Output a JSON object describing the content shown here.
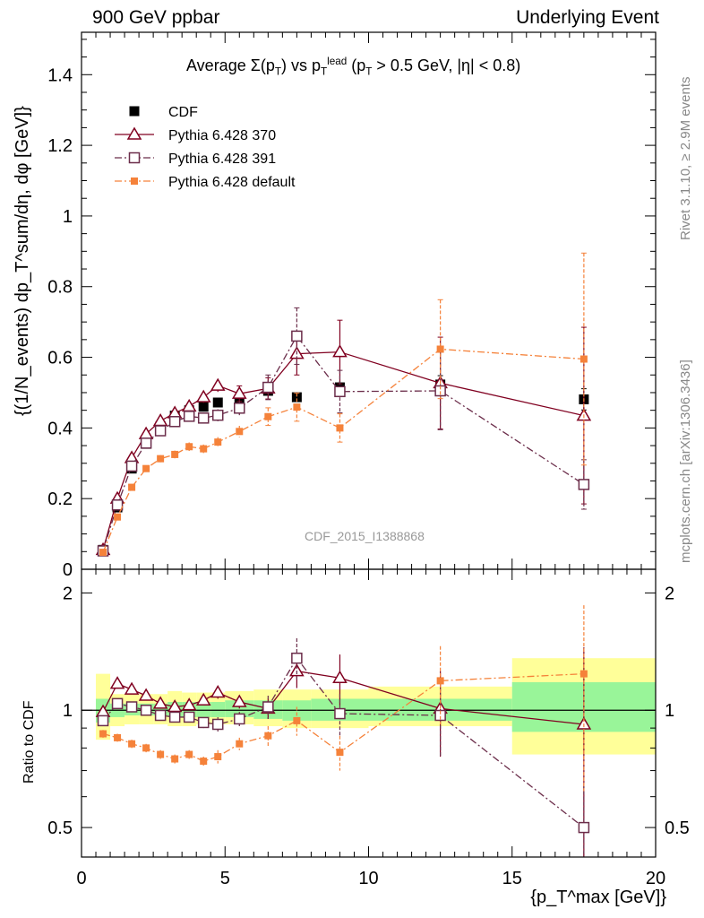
{
  "header": {
    "left": "900 GeV ppbar",
    "right": "Underlying Event",
    "subtitle_parts": [
      "Average ",
      "Σ(p",
      "T",
      ") vs p",
      "T",
      "lead",
      " (p",
      "T",
      " > 0.5 GeV, |η| < 0.8)"
    ],
    "side_top": "Rivet 3.1.10, ≥ 2.9M events",
    "side_bottom": "mcplots.cern.ch [arXiv:1306.3436]",
    "watermark": "CDF_2015_I1388868"
  },
  "axes": {
    "ylabel_top": "{(1/N_events) dp_T^sum/dη, dφ [GeV]}",
    "ylabel_bottom": "Ratio to CDF",
    "xlabel": "{p_T^max [GeV]}"
  },
  "chart_data": [
    {
      "type": "scatter",
      "panel": "main",
      "title": "Average Σ(pT) vs pT lead (pT > 0.5 GeV, |η| < 0.8)",
      "xlim": [
        0,
        20
      ],
      "ylim": [
        0,
        1.52
      ],
      "yticks": [
        0,
        0.2,
        0.4,
        0.6,
        0.8,
        1,
        1.2,
        1.4
      ],
      "ytick_labels": [
        "0",
        "0.2",
        "0.4",
        "0.6",
        "0.8",
        "1",
        "1.2",
        "1.4"
      ],
      "legend_position": "top-left",
      "series": [
        {
          "name": "CDF",
          "color": "#000000",
          "marker": "filled-square",
          "line": "none",
          "x": [
            0.75,
            1.25,
            1.75,
            2.25,
            2.75,
            3.25,
            3.75,
            4.25,
            4.75,
            5.5,
            6.5,
            7.5,
            9.0,
            12.5,
            17.5
          ],
          "y": [
            0.055,
            0.175,
            0.285,
            0.355,
            0.405,
            0.435,
            0.45,
            0.46,
            0.472,
            0.478,
            0.505,
            0.487,
            0.515,
            0.523,
            0.481
          ],
          "err": [
            0.003,
            0.005,
            0.006,
            0.007,
            0.008,
            0.008,
            0.009,
            0.009,
            0.01,
            0.01,
            0.012,
            0.014,
            0.018,
            0.025,
            0.03
          ]
        },
        {
          "name": "Pythia 6.428 370",
          "color": "#800020",
          "marker": "open-triangle",
          "line": "solid",
          "x": [
            0.75,
            1.25,
            1.75,
            2.25,
            2.75,
            3.25,
            3.75,
            4.25,
            4.75,
            5.5,
            6.5,
            7.5,
            9.0,
            12.5,
            17.5
          ],
          "y": [
            0.055,
            0.2,
            0.315,
            0.383,
            0.42,
            0.442,
            0.461,
            0.487,
            0.52,
            0.497,
            0.512,
            0.61,
            0.615,
            0.527,
            0.435
          ],
          "err": [
            0.004,
            0.008,
            0.01,
            0.01,
            0.012,
            0.012,
            0.014,
            0.016,
            0.018,
            0.022,
            0.03,
            0.06,
            0.09,
            0.13,
            0.25
          ]
        },
        {
          "name": "Pythia 6.428 391",
          "color": "#6b2d4a",
          "marker": "open-square",
          "line": "dashdot",
          "x": [
            0.75,
            1.25,
            1.75,
            2.25,
            2.75,
            3.25,
            3.75,
            4.25,
            4.75,
            5.5,
            6.5,
            7.5,
            9.0,
            12.5,
            17.5
          ],
          "y": [
            0.052,
            0.182,
            0.292,
            0.357,
            0.392,
            0.418,
            0.433,
            0.428,
            0.436,
            0.456,
            0.515,
            0.66,
            0.503,
            0.505,
            0.24
          ],
          "err": [
            0.004,
            0.007,
            0.009,
            0.01,
            0.011,
            0.012,
            0.013,
            0.015,
            0.017,
            0.02,
            0.035,
            0.08,
            0.06,
            0.11,
            0.07
          ]
        },
        {
          "name": "Pythia 6.428 default",
          "color": "#f5823a",
          "marker": "small-filled-square",
          "line": "dashdot",
          "x": [
            0.75,
            1.25,
            1.75,
            2.25,
            2.75,
            3.25,
            3.75,
            4.25,
            4.75,
            5.5,
            6.5,
            7.5,
            9.0,
            12.5,
            17.5
          ],
          "y": [
            0.048,
            0.148,
            0.232,
            0.285,
            0.313,
            0.325,
            0.347,
            0.341,
            0.36,
            0.39,
            0.432,
            0.459,
            0.4,
            0.623,
            0.595
          ],
          "err": [
            0.003,
            0.006,
            0.008,
            0.009,
            0.01,
            0.011,
            0.012,
            0.012,
            0.014,
            0.016,
            0.025,
            0.04,
            0.04,
            0.14,
            0.3
          ]
        }
      ]
    },
    {
      "type": "scatter",
      "panel": "ratio",
      "ylabel": "Ratio to CDF",
      "xlabel": "{pT max [GeV]}",
      "xlim": [
        0,
        20
      ],
      "ylim": [
        0.42,
        2.3
      ],
      "yscale": "log",
      "yticks": [
        0.5,
        1,
        2
      ],
      "ytick_labels": [
        "0.5",
        "1",
        "2"
      ],
      "xticks": [
        0,
        5,
        10,
        15,
        20
      ],
      "xtick_labels": [
        "0",
        "5",
        "10",
        "15",
        "20"
      ],
      "bands": {
        "bins": [
          [
            0.5,
            1.0
          ],
          [
            1.0,
            1.5
          ],
          [
            1.5,
            2.0
          ],
          [
            2.0,
            2.5
          ],
          [
            2.5,
            3.0
          ],
          [
            3.0,
            3.5
          ],
          [
            3.5,
            4.0
          ],
          [
            4.0,
            4.5
          ],
          [
            4.5,
            5.0
          ],
          [
            5.0,
            6.0
          ],
          [
            6.0,
            7.0
          ],
          [
            7.0,
            8.0
          ],
          [
            8.0,
            10.0
          ],
          [
            10.0,
            15.0
          ],
          [
            15.0,
            20.0
          ]
        ],
        "inner_lo": [
          0.93,
          0.96,
          0.97,
          0.97,
          0.97,
          0.96,
          0.96,
          0.96,
          0.96,
          0.96,
          0.95,
          0.94,
          0.94,
          0.94,
          0.88
        ],
        "inner_hi": [
          1.07,
          1.04,
          1.04,
          1.04,
          1.04,
          1.05,
          1.05,
          1.05,
          1.05,
          1.06,
          1.06,
          1.06,
          1.07,
          1.07,
          1.18
        ],
        "outer_lo": [
          0.84,
          0.91,
          0.92,
          0.92,
          0.92,
          0.91,
          0.91,
          0.92,
          0.92,
          0.92,
          0.91,
          0.9,
          0.9,
          0.91,
          0.77
        ],
        "outer_hi": [
          1.24,
          1.1,
          1.1,
          1.1,
          1.1,
          1.12,
          1.11,
          1.11,
          1.11,
          1.12,
          1.13,
          1.13,
          1.13,
          1.15,
          1.36
        ],
        "inner_color": "#99f599",
        "outer_color": "#ffff99"
      },
      "series": [
        {
          "name": "Pythia 6.428 370",
          "x": [
            0.75,
            1.25,
            1.75,
            2.25,
            2.75,
            3.25,
            3.75,
            4.25,
            4.75,
            5.5,
            6.5,
            7.5,
            9.0,
            12.5,
            17.5
          ],
          "y": [
            0.99,
            1.17,
            1.13,
            1.09,
            1.04,
            1.02,
            1.03,
            1.06,
            1.11,
            1.05,
            1.01,
            1.26,
            1.21,
            1.01,
            0.92
          ],
          "err": [
            0.02,
            0.03,
            0.03,
            0.03,
            0.03,
            0.03,
            0.03,
            0.03,
            0.04,
            0.04,
            0.06,
            0.12,
            0.18,
            0.25,
            0.53
          ]
        },
        {
          "name": "Pythia 6.428 391",
          "x": [
            0.75,
            1.25,
            1.75,
            2.25,
            2.75,
            3.25,
            3.75,
            4.25,
            4.75,
            5.5,
            6.5,
            7.5,
            9.0,
            12.5,
            17.5
          ],
          "y": [
            0.94,
            1.04,
            1.02,
            1.0,
            0.97,
            0.96,
            0.96,
            0.93,
            0.92,
            0.95,
            1.02,
            1.36,
            0.98,
            0.97,
            0.5
          ],
          "err": [
            0.02,
            0.03,
            0.03,
            0.03,
            0.03,
            0.03,
            0.03,
            0.03,
            0.04,
            0.04,
            0.07,
            0.17,
            0.12,
            0.21,
            0.14
          ]
        },
        {
          "name": "Pythia 6.428 default",
          "x": [
            0.75,
            1.25,
            1.75,
            2.25,
            2.75,
            3.25,
            3.75,
            4.25,
            4.75,
            5.5,
            6.5,
            7.5,
            9.0,
            12.5,
            17.5
          ],
          "y": [
            0.87,
            0.85,
            0.82,
            0.8,
            0.77,
            0.75,
            0.77,
            0.74,
            0.76,
            0.82,
            0.86,
            0.94,
            0.78,
            1.19,
            1.24
          ],
          "err": [
            0.02,
            0.02,
            0.02,
            0.02,
            0.02,
            0.02,
            0.02,
            0.02,
            0.03,
            0.03,
            0.05,
            0.08,
            0.08,
            0.27,
            0.62
          ]
        }
      ]
    }
  ]
}
